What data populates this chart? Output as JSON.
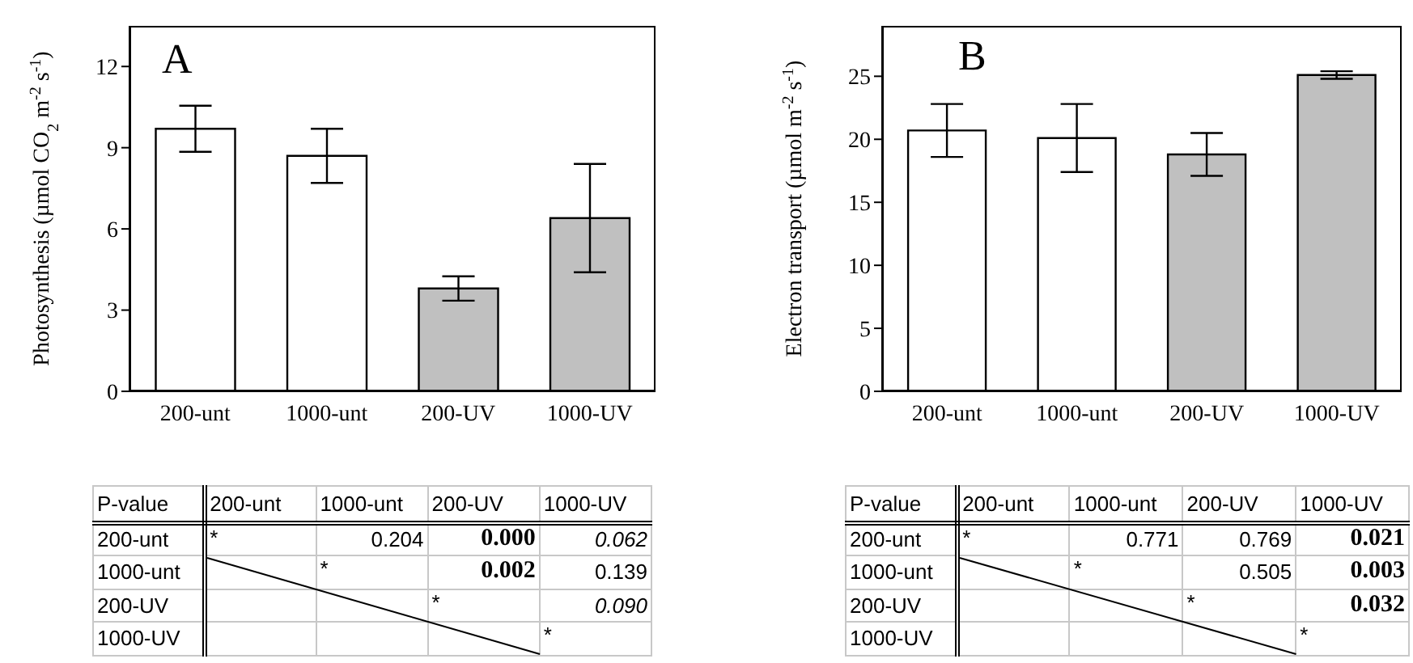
{
  "chart_data": [
    {
      "type": "bar",
      "ylabel": "Photosynthesis (µmol CO$_{2}$ m$^{-2}$ s$^{-1}$)",
      "annotations": [
        "A"
      ],
      "categories": [
        "200-unt",
        "1000-unt",
        "200-UV",
        "1000-UV"
      ],
      "values": [
        9.7,
        8.7,
        3.8,
        6.4
      ],
      "errors": [
        0.85,
        1.0,
        0.45,
        2.0
      ],
      "colors": [
        "#ffffff",
        "#ffffff",
        "#c0c0c0",
        "#c0c0c0"
      ],
      "ylim": [
        0,
        13.5
      ],
      "yticks": [
        0,
        3,
        6,
        9,
        12
      ]
    },
    {
      "type": "bar",
      "ylabel": "Electron transport (µmol m$^{-2}$ s$^{-1}$)",
      "annotations": [
        "B"
      ],
      "categories": [
        "200-unt",
        "1000-unt",
        "200-UV",
        "1000-UV"
      ],
      "values": [
        20.7,
        20.1,
        18.8,
        25.1
      ],
      "errors": [
        2.1,
        2.7,
        1.7,
        0.3
      ],
      "colors": [
        "#ffffff",
        "#ffffff",
        "#c0c0c0",
        "#c0c0c0"
      ],
      "ylim": [
        0,
        29
      ],
      "yticks": [
        0,
        5,
        10,
        15,
        20,
        25
      ]
    },
    {
      "type": "other",
      "title": "P-value",
      "categories": [
        "200-unt",
        "1000-unt",
        "200-UV",
        "1000-UV"
      ],
      "y_categories": [
        "200-unt",
        "1000-unt",
        "200-UV",
        "1000-UV"
      ],
      "cell_labels": [
        [
          "*",
          "0.204",
          "0.000",
          "0.062"
        ],
        [
          null,
          "*",
          "0.002",
          "0.139"
        ],
        [
          null,
          null,
          "*",
          "0.090"
        ],
        [
          null,
          null,
          null,
          "*"
        ]
      ]
    },
    {
      "type": "other",
      "title": "P-value",
      "categories": [
        "200-unt",
        "1000-unt",
        "200-UV",
        "1000-UV"
      ],
      "y_categories": [
        "200-unt",
        "1000-unt",
        "200-UV",
        "1000-UV"
      ],
      "cell_labels": [
        [
          "*",
          "0.771",
          "0.769",
          "0.021"
        ],
        [
          null,
          "*",
          "0.505",
          "0.003"
        ],
        [
          null,
          null,
          "*",
          "0.032"
        ],
        [
          null,
          null,
          null,
          "*"
        ]
      ]
    }
  ]
}
